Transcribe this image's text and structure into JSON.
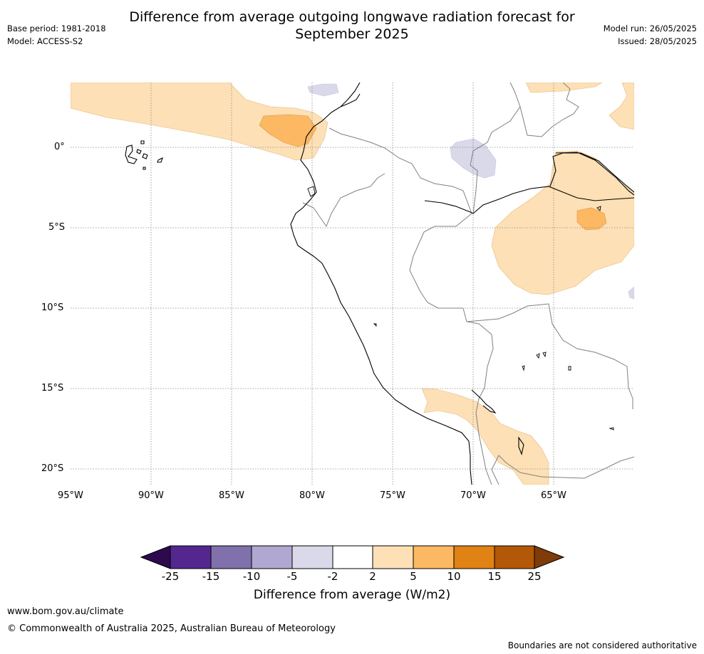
{
  "title_line1": "Difference from average outgoing longwave radiation forecast for",
  "title_line2": "September 2025",
  "base_period": "Base period: 1981-2018",
  "model": "Model: ACCESS-S2",
  "model_run": "Model run: 26/05/2025",
  "issued": "Issued: 28/05/2025",
  "map": {
    "lat_labels": [
      "0°",
      "5°S",
      "10°S",
      "15°S",
      "20°S"
    ],
    "lon_labels": [
      "95°W",
      "90°W",
      "85°W",
      "80°W",
      "75°W",
      "70°W",
      "65°W"
    ]
  },
  "colorbar": {
    "title": "Difference from average (W/m2)",
    "ticks": [
      "-25",
      "-15",
      "-10",
      "-5",
      "-2",
      "2",
      "5",
      "10",
      "15",
      "25"
    ],
    "colors": {
      "below": "#2d0a4e",
      "c1": "#54278f",
      "c2": "#8070ab",
      "c3": "#b1a8d1",
      "c4": "#d9d9ea",
      "c5": "#ffffff",
      "c6": "#fde0b6",
      "c7": "#fdb863",
      "c8": "#e08214",
      "c9": "#b35806",
      "above": "#7f3b08"
    }
  },
  "footer": {
    "url": "www.bom.gov.au/climate",
    "copyright": "© Commonwealth of Australia 2025, Australian Bureau of Meteorology",
    "disclaimer": "Boundaries are not considered authoritative"
  }
}
